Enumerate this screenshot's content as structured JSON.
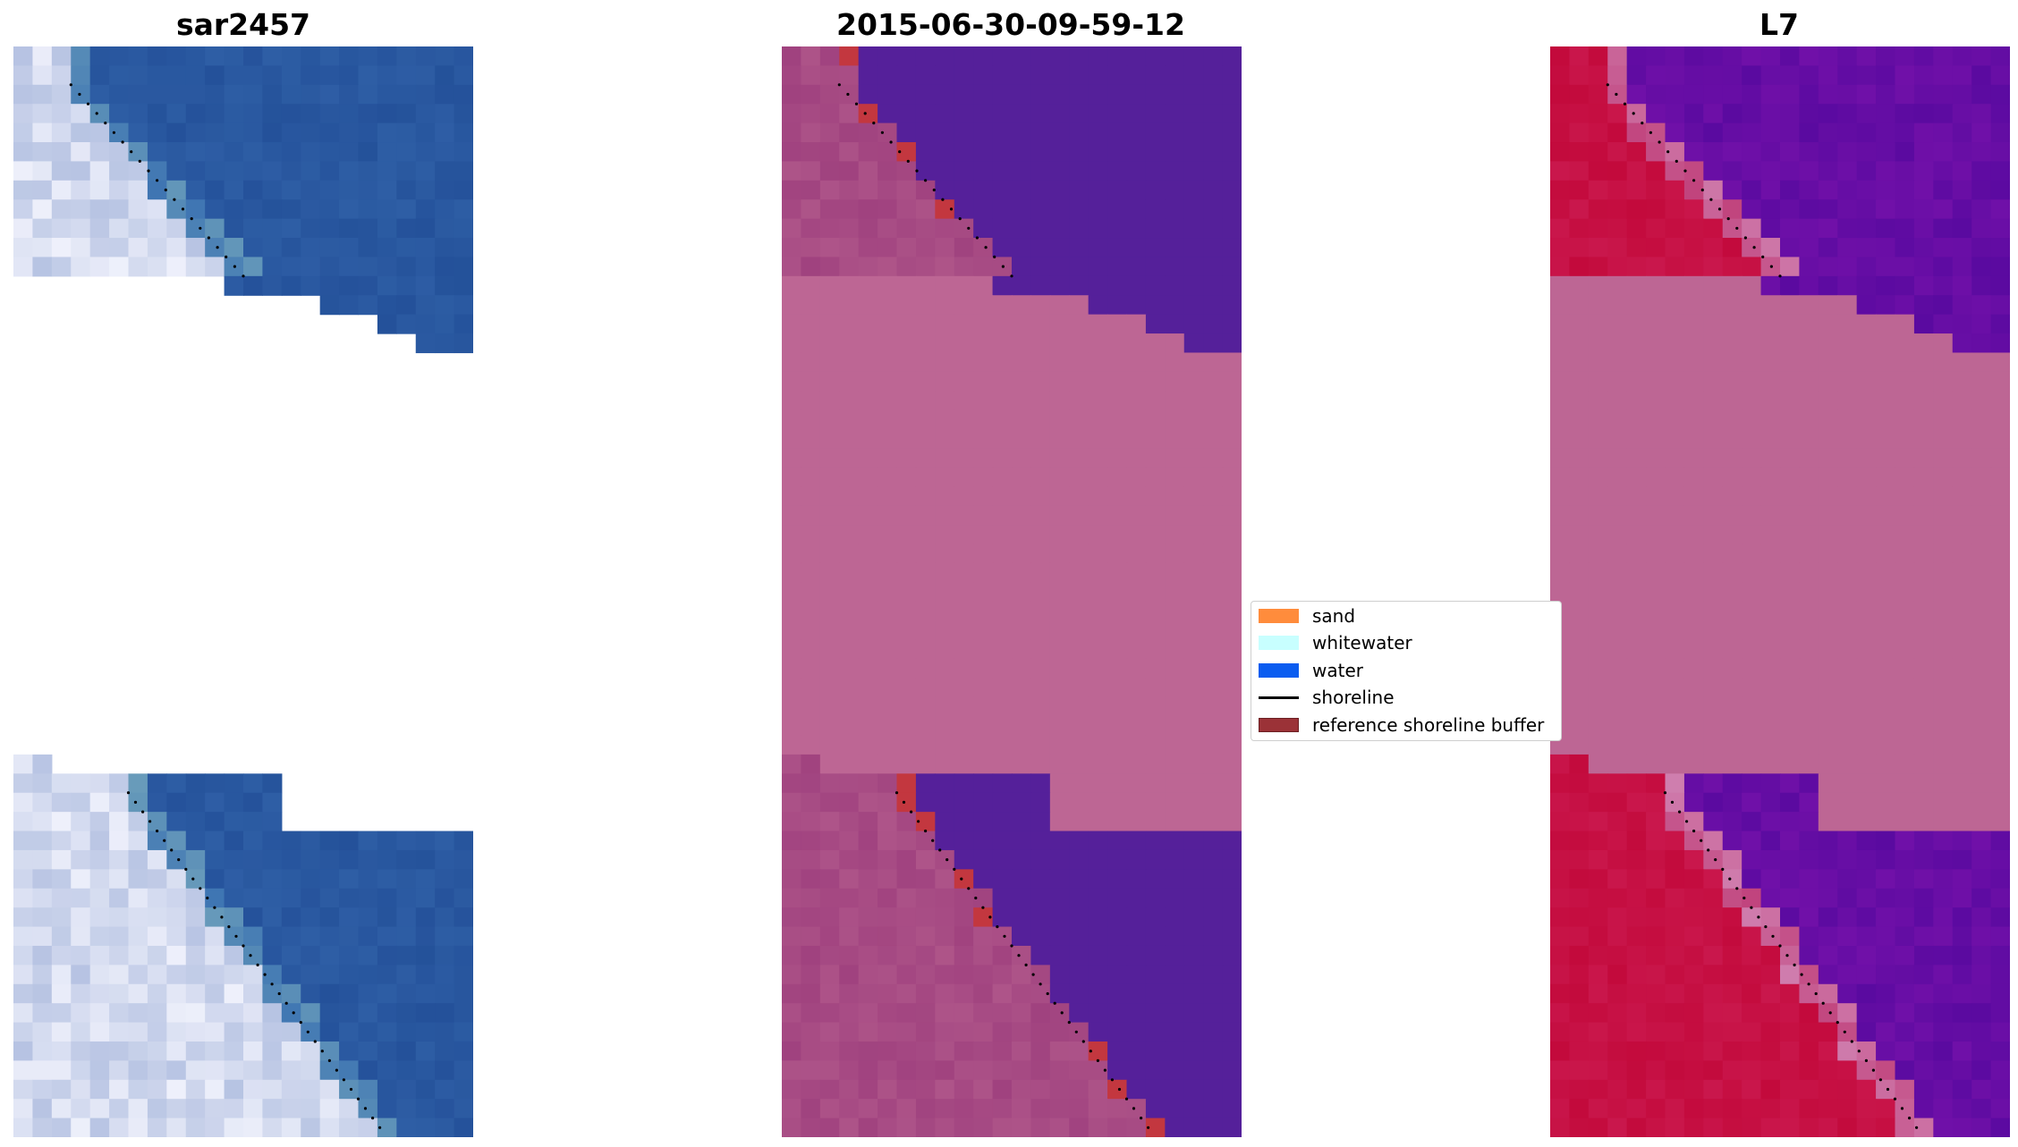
{
  "panels": [
    {
      "title": "sar2457",
      "image": "sar-rgb-composite"
    },
    {
      "title": "2015-06-30-09-59-12",
      "image": "classified-overlay"
    },
    {
      "title": "L7",
      "image": "index-map"
    }
  ],
  "legend": {
    "items": [
      {
        "label": "sand",
        "color": "#ff8c3c",
        "kind": "patch"
      },
      {
        "label": "whitewater",
        "color": "#c8ffff",
        "kind": "patch"
      },
      {
        "label": "water",
        "color": "#0a5cf0",
        "kind": "patch"
      },
      {
        "label": "shoreline",
        "color": "#000000",
        "kind": "line"
      },
      {
        "label": "reference shoreline buffer",
        "color": "#9b3237",
        "kind": "patch"
      }
    ]
  },
  "colors": {
    "sar_water": "#24519a",
    "sar_bright_sand": "#eef0fb",
    "class_water": "#55209a",
    "class_nodata": "#bd6694",
    "class_sand": "#a0427f",
    "class_buffer": "#c3373f",
    "l7_nodata": "#bd6694",
    "l7_water": "#5a0aa0",
    "l7_land": "#c30a3c"
  }
}
